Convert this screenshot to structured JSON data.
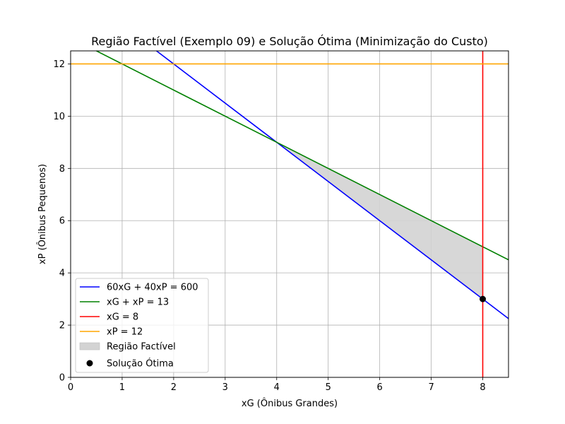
{
  "chart_data": {
    "type": "line",
    "title": "Região Factível (Exemplo 09) e Solução Ótima (Minimização do Custo)",
    "xlabel": "xG (Ônibus Grandes)",
    "ylabel": "xP (Ônibus Pequenos)",
    "xlim": [
      0,
      8.5
    ],
    "ylim": [
      0,
      12.5
    ],
    "x_ticks": [
      0,
      1,
      2,
      3,
      4,
      5,
      6,
      7,
      8
    ],
    "y_ticks": [
      0,
      2,
      4,
      6,
      8,
      10,
      12
    ],
    "grid": true,
    "legend_position": "lower-left",
    "series": [
      {
        "name": "60xG + 40xP = 600",
        "color": "#0000ff",
        "kind": "line",
        "points": [
          [
            0,
            15
          ],
          [
            8.5,
            2.25
          ]
        ]
      },
      {
        "name": "xG + xP = 13",
        "color": "#008000",
        "kind": "line",
        "points": [
          [
            0,
            13
          ],
          [
            8.5,
            4.5
          ]
        ]
      },
      {
        "name": "xG = 8",
        "color": "#ff0000",
        "kind": "vline",
        "x": 8
      },
      {
        "name": "xP = 12",
        "color": "#ffa500",
        "kind": "hline",
        "y": 12
      }
    ],
    "feasible_region": {
      "name": "Região Factível",
      "color": "#d3d3d3",
      "polygon": [
        [
          4,
          9
        ],
        [
          8,
          5
        ],
        [
          8,
          3
        ]
      ]
    },
    "optimal_solution": {
      "name": "Solução Ótima",
      "color": "#000000",
      "x": 8,
      "y": 3
    }
  }
}
